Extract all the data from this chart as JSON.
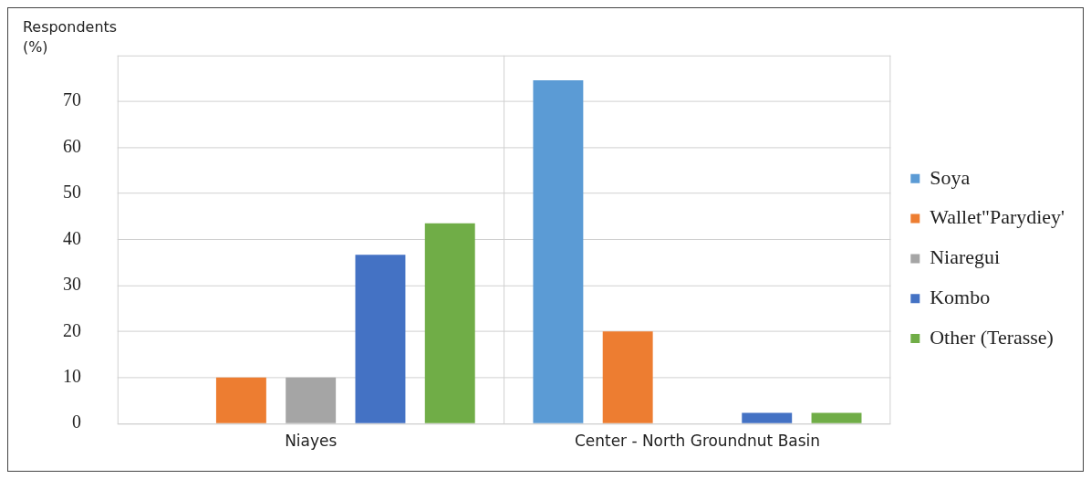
{
  "chart_data": {
    "type": "bar",
    "ylabel": "Respondents (%)",
    "categories": [
      "Niayes",
      "Center - North Groundnut Basin"
    ],
    "series": [
      {
        "name": "Soya",
        "color": "#5b9bd5",
        "values": [
          0,
          74.6
        ]
      },
      {
        "name": "Wallet\"Parydiey'",
        "color": "#ed7d31",
        "values": [
          10,
          20
        ]
      },
      {
        "name": "Niaregui",
        "color": "#a5a5a5",
        "values": [
          10,
          0
        ]
      },
      {
        "name": "Kombo",
        "color": "#4472c4",
        "values": [
          36.7,
          2.3
        ]
      },
      {
        "name": "Other (Terasse)",
        "color": "#70ad47",
        "values": [
          43.5,
          2.3
        ]
      }
    ],
    "ylim": [
      0,
      80
    ],
    "yticks": [
      0,
      10,
      20,
      30,
      40,
      50,
      60,
      70,
      {
        "value": 80,
        "label": null
      }
    ],
    "grid": true,
    "legend": "right"
  }
}
